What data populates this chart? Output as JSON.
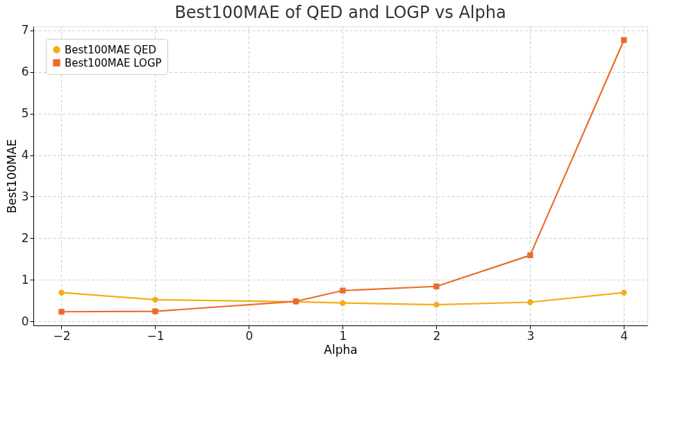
{
  "chart_data": {
    "type": "line",
    "title": "Best100MAE of QED and LOGP vs Alpha",
    "xlabel": "Alpha",
    "ylabel": "Best100MAE",
    "x": [
      -2,
      -1,
      0.5,
      1,
      2,
      3,
      4
    ],
    "series": [
      {
        "name": "Best100MAE QED",
        "color": "#f5ad16",
        "marker": "circle",
        "values": [
          0.69,
          0.52,
          0.47,
          0.44,
          0.4,
          0.46,
          0.69
        ]
      },
      {
        "name": "Best100MAE LOGP",
        "color": "#eb6c2a",
        "marker": "square",
        "values": [
          0.23,
          0.24,
          0.48,
          0.74,
          0.84,
          1.59,
          6.77
        ]
      }
    ],
    "xlim": [
      -2.3,
      4.25
    ],
    "ylim": [
      -0.1,
      7.1
    ],
    "xticks": [
      -2,
      -1,
      0,
      1,
      2,
      3,
      4
    ],
    "yticks": [
      0,
      1,
      2,
      3,
      4,
      5,
      6,
      7
    ],
    "grid": true,
    "legend": "top left",
    "line_style": "solid"
  }
}
